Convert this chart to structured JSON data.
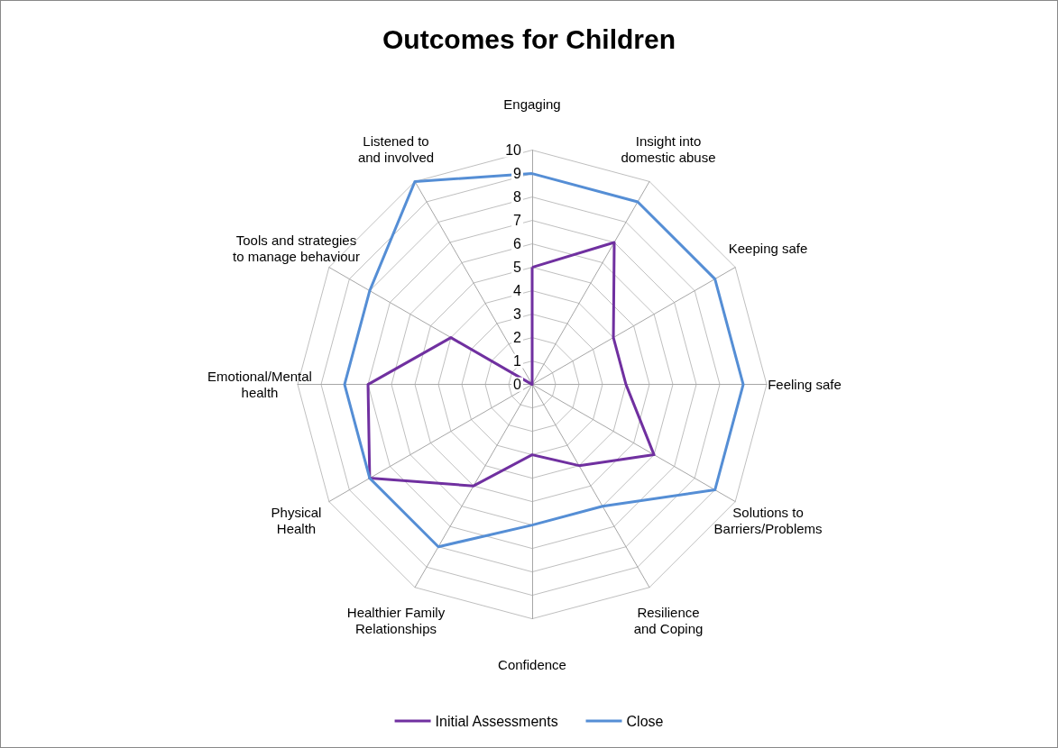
{
  "chart_data": {
    "type": "radar",
    "title": "Outcomes for Children",
    "categories": [
      "Engaging",
      "Insight into domestic abuse",
      "Keeping safe",
      "Feeling safe",
      "Solutions to Barriers/Problems",
      "Resilience and Coping",
      "Confidence",
      "Healthier Family Relationships",
      "Physical Health",
      "Emotional/Mental health",
      "Tools and strategies to manage behaviour",
      "Listened to and involved"
    ],
    "series": [
      {
        "name": "Initial Assessments",
        "color": "#7030a0",
        "values": [
          5,
          7,
          4,
          4,
          6,
          4,
          3,
          5,
          8,
          7,
          4,
          0
        ]
      },
      {
        "name": "Close",
        "color": "#558ed5",
        "values": [
          9,
          9,
          9,
          9,
          9,
          6,
          6,
          8,
          8,
          8,
          8,
          10
        ]
      }
    ],
    "ylim": [
      0,
      10
    ],
    "yticks": [
      0,
      1,
      2,
      3,
      4,
      5,
      6,
      7,
      8,
      9,
      10
    ],
    "grid": true,
    "legend": "bottom",
    "marker": "none"
  }
}
